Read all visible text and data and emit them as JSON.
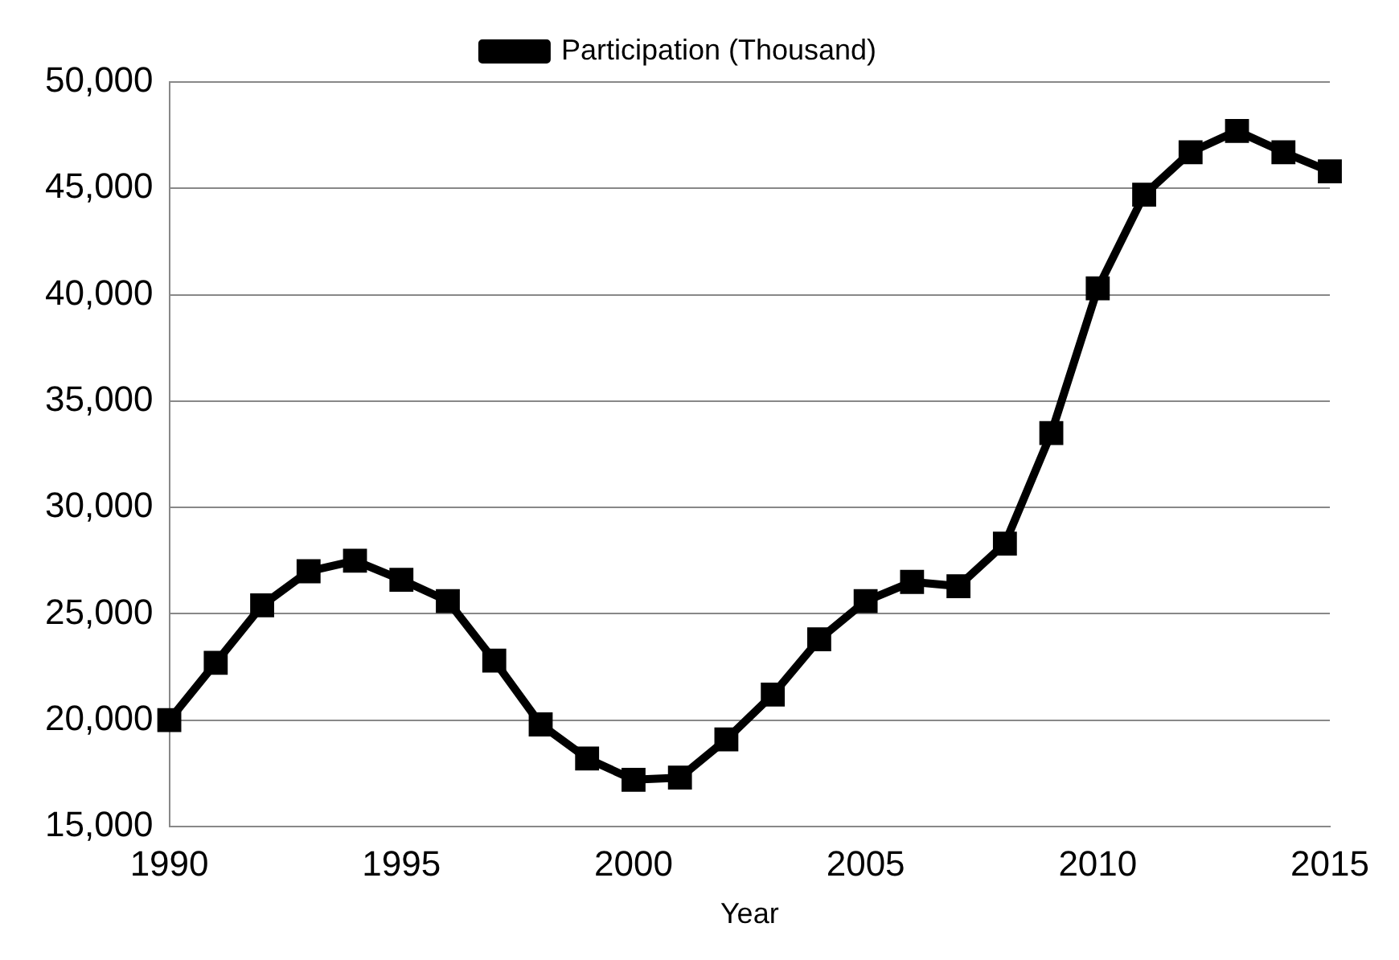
{
  "chart_data": {
    "type": "line",
    "xlabel": "Year",
    "x": [
      1990,
      1991,
      1992,
      1993,
      1994,
      1995,
      1996,
      1997,
      1998,
      1999,
      2000,
      2001,
      2002,
      2003,
      2004,
      2005,
      2006,
      2007,
      2008,
      2009,
      2010,
      2011,
      2012,
      2013,
      2014,
      2015
    ],
    "series": [
      {
        "name": "Participation (Thousand)",
        "color": "#000000",
        "values": [
          20000,
          22700,
          25400,
          27000,
          27500,
          26600,
          25600,
          22800,
          19800,
          18200,
          17200,
          17300,
          19100,
          21200,
          23800,
          25600,
          26500,
          26300,
          28300,
          33500,
          40300,
          44700,
          46700,
          47700,
          46700,
          45800
        ]
      }
    ],
    "xlim": [
      1990,
      2015
    ],
    "xticks": [
      1990,
      1995,
      2000,
      2005,
      2010,
      2015
    ],
    "ylim": [
      15000,
      50000
    ],
    "yticks": [
      {
        "value": 15000,
        "label": "15,000"
      },
      {
        "value": 20000,
        "label": "20,000"
      },
      {
        "value": 25000,
        "label": "25,000"
      },
      {
        "value": 30000,
        "label": "30,000"
      },
      {
        "value": 35000,
        "label": "35,000"
      },
      {
        "value": 40000,
        "label": "40,000"
      },
      {
        "value": 45000,
        "label": "45,000"
      },
      {
        "value": 50000,
        "label": "50,000"
      }
    ],
    "grid": "y",
    "legend": "top",
    "marker": "square",
    "line_style": "solid"
  }
}
